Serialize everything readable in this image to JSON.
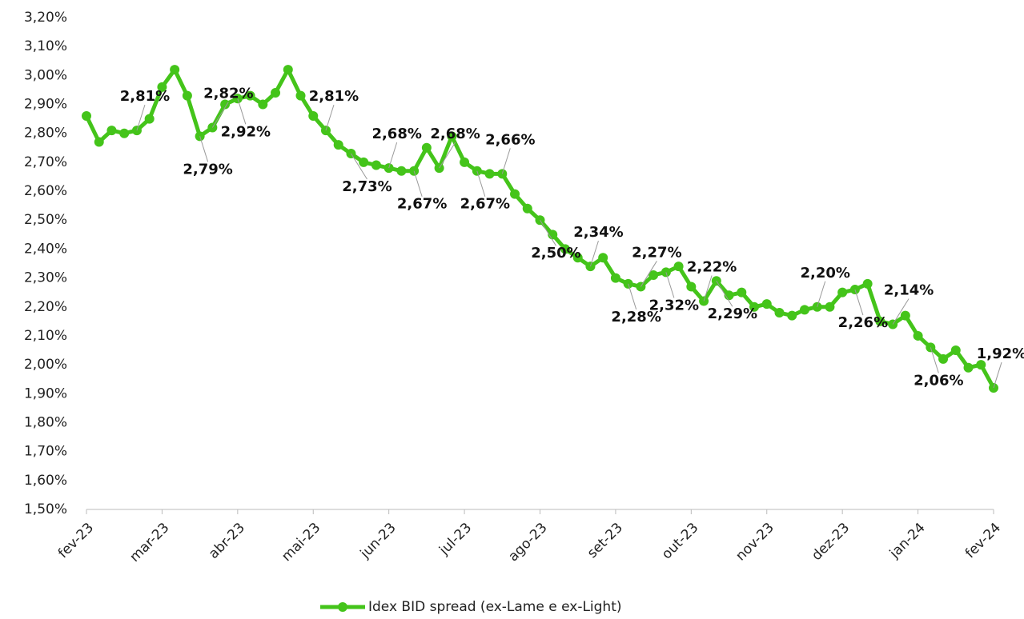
{
  "chart_data": {
    "type": "line",
    "categories": [
      "fev-23",
      null,
      null,
      null,
      null,
      null,
      "mar-23",
      null,
      null,
      null,
      null,
      null,
      "abr-23",
      null,
      null,
      null,
      null,
      null,
      "mai-23",
      null,
      null,
      null,
      null,
      null,
      "jun-23",
      null,
      null,
      null,
      null,
      null,
      "jul-23",
      null,
      null,
      null,
      null,
      null,
      "ago-23",
      null,
      null,
      null,
      null,
      null,
      "set-23",
      null,
      null,
      null,
      null,
      null,
      "out-23",
      null,
      null,
      null,
      null,
      null,
      "nov-23",
      null,
      null,
      null,
      null,
      null,
      "dez-23",
      null,
      null,
      null,
      null,
      null,
      "jan-24",
      null,
      null,
      null,
      null,
      null,
      "fev-24"
    ],
    "series": [
      {
        "name": "Idex BID spread (ex-Lame e ex-Light)",
        "color": "#44c41a",
        "values": [
          2.86,
          2.77,
          2.81,
          2.8,
          2.81,
          2.85,
          2.96,
          3.02,
          2.93,
          2.79,
          2.82,
          2.9,
          2.92,
          2.93,
          2.9,
          2.94,
          3.02,
          2.93,
          2.86,
          2.81,
          2.76,
          2.73,
          2.7,
          2.69,
          2.68,
          2.67,
          2.67,
          2.75,
          2.68,
          2.79,
          2.7,
          2.67,
          2.66,
          2.66,
          2.59,
          2.54,
          2.5,
          2.45,
          2.4,
          2.37,
          2.34,
          2.37,
          2.3,
          2.28,
          2.27,
          2.31,
          2.32,
          2.34,
          2.27,
          2.22,
          2.29,
          2.24,
          2.25,
          2.2,
          2.21,
          2.18,
          2.17,
          2.19,
          2.2,
          2.2,
          2.25,
          2.26,
          2.28,
          2.15,
          2.14,
          2.17,
          2.1,
          2.06,
          2.02,
          2.05,
          1.99,
          2.0,
          1.92
        ],
        "value_labels": [
          null,
          null,
          null,
          null,
          "2,81%",
          null,
          null,
          null,
          null,
          "2,79%",
          "2,82%",
          null,
          "2,92%",
          null,
          null,
          null,
          null,
          null,
          null,
          "2,81%",
          null,
          "2,73%",
          null,
          null,
          "2,68%",
          null,
          "2,67%",
          null,
          "2,68%",
          null,
          null,
          "2,67%",
          null,
          "2,66%",
          null,
          null,
          "2,50%",
          null,
          null,
          null,
          "2,34%",
          null,
          null,
          "2,28%",
          "2,27%",
          null,
          "2,32%",
          null,
          null,
          "2,22%",
          "2,29%",
          null,
          null,
          null,
          null,
          null,
          null,
          null,
          "2,20%",
          null,
          null,
          "2,26%",
          null,
          null,
          "2,14%",
          null,
          null,
          "2,06%",
          null,
          null,
          null,
          null,
          "1,92%"
        ]
      }
    ],
    "ylim": [
      1.5,
      3.2
    ],
    "yticks": [
      {
        "value": 1.5,
        "label": "1,50%"
      },
      {
        "value": 1.6,
        "label": "1,60%"
      },
      {
        "value": 1.7,
        "label": "1,70%"
      },
      {
        "value": 1.8,
        "label": "1,80%"
      },
      {
        "value": 1.9,
        "label": "1,90%"
      },
      {
        "value": 2.0,
        "label": "2,00%"
      },
      {
        "value": 2.1,
        "label": "2,10%"
      },
      {
        "value": 2.2,
        "label": "2,20%"
      },
      {
        "value": 2.3,
        "label": "2,30%"
      },
      {
        "value": 2.4,
        "label": "2,40%"
      },
      {
        "value": 2.5,
        "label": "2,50%"
      },
      {
        "value": 2.6,
        "label": "2,60%"
      },
      {
        "value": 2.7,
        "label": "2,70%"
      },
      {
        "value": 2.8,
        "label": "2,80%"
      },
      {
        "value": 2.9,
        "label": "2,90%"
      },
      {
        "value": 3.0,
        "label": "3,00%"
      },
      {
        "value": 3.1,
        "label": "3,10%"
      },
      {
        "value": 3.2,
        "label": "3,20%"
      }
    ],
    "legend": "bottom"
  }
}
